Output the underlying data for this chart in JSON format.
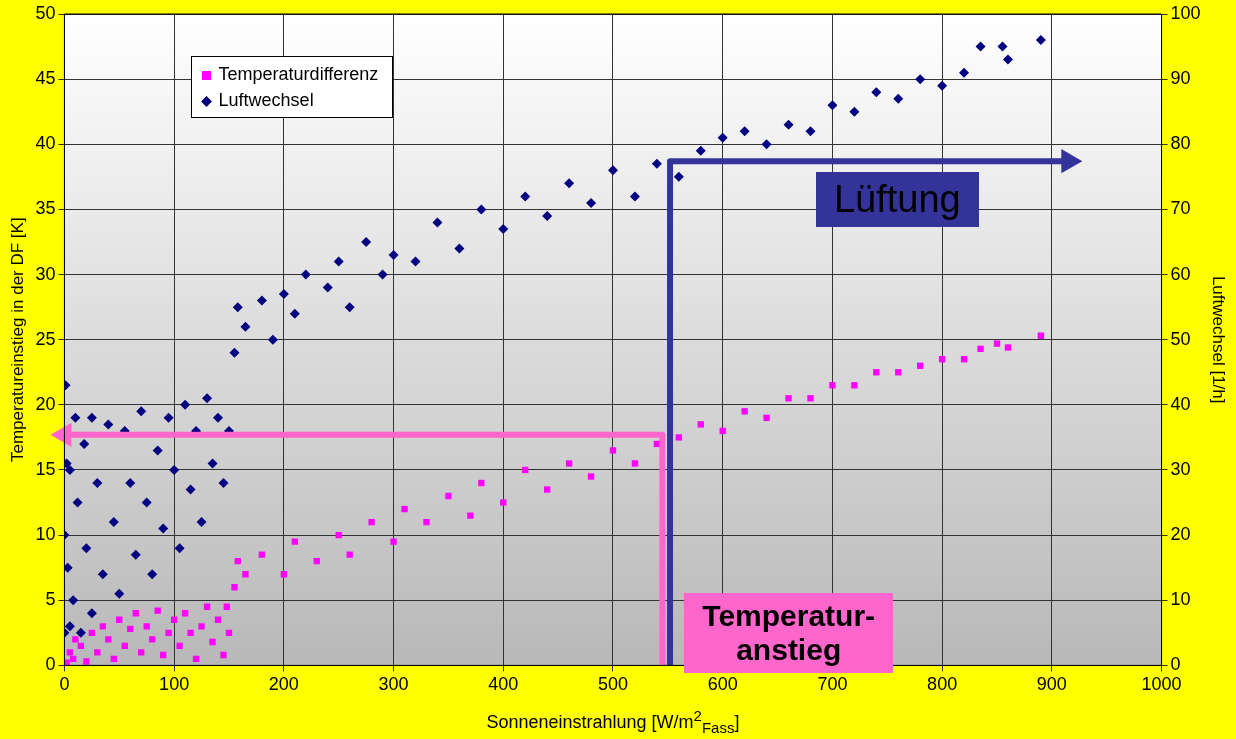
{
  "chart_data": {
    "type": "scatter",
    "xlabel": "Sonneneinstrahlung [W/m$^{2}$$_{Fass}$]",
    "ylabel": "Temperatureinstieg in der DF [K]",
    "y2label": "Luftwechsel [1/h]",
    "xlim": [
      0,
      1000
    ],
    "xticks": [
      0,
      100,
      200,
      300,
      400,
      500,
      600,
      700,
      800,
      900,
      1000
    ],
    "ylim": [
      0,
      50
    ],
    "yticks": [
      0,
      5,
      10,
      15,
      20,
      25,
      30,
      35,
      40,
      45,
      50
    ],
    "y2lim": [
      0,
      100
    ],
    "y2ticks": [
      0,
      10,
      20,
      30,
      40,
      50,
      60,
      70,
      80,
      90,
      100
    ],
    "grid": true,
    "legend": "top left",
    "annotations": [
      "Lüftung",
      "Temperatur-\nanstieg"
    ],
    "series": [
      {
        "name": "Temperaturdifferenz",
        "color": "#ff00ff",
        "marker": "square",
        "x": [
          2,
          5,
          8,
          10,
          15,
          20,
          25,
          30,
          35,
          40,
          45,
          50,
          55,
          60,
          65,
          70,
          75,
          80,
          85,
          90,
          95,
          100,
          105,
          110,
          115,
          120,
          125,
          130,
          135,
          140,
          145,
          148,
          150,
          155,
          158,
          165,
          180,
          200,
          210,
          230,
          250,
          260,
          280,
          300,
          310,
          330,
          350,
          370,
          380,
          400,
          420,
          440,
          460,
          480,
          500,
          520,
          540,
          560,
          580,
          600,
          620,
          640,
          660,
          680,
          700,
          720,
          740,
          760,
          780,
          800,
          820,
          835,
          850,
          860,
          890
        ],
        "values": [
          0.2,
          1,
          0.5,
          2,
          1.5,
          0.3,
          2.5,
          1,
          3,
          2,
          0.5,
          3.5,
          1.5,
          2.8,
          4,
          1,
          3,
          2,
          4.2,
          0.8,
          2.5,
          3.5,
          1.5,
          4,
          2.5,
          0.5,
          3,
          4.5,
          1.8,
          3.5,
          0.8,
          4.5,
          2.5,
          6,
          8,
          7,
          8.5,
          7,
          9.5,
          8,
          10,
          8.5,
          11,
          9.5,
          12,
          11,
          13,
          11.5,
          14,
          12.5,
          15,
          13.5,
          15.5,
          14.5,
          16.5,
          15.5,
          17,
          17.5,
          18.5,
          18,
          19.5,
          19,
          20.5,
          20.5,
          21.5,
          21.5,
          22.5,
          22.5,
          23,
          23.5,
          23.5,
          24.3,
          24.7,
          24.4,
          25.3
        ]
      },
      {
        "name": "Luftwechsel",
        "color": "#000080",
        "marker": "diamond",
        "axis": "y2",
        "x": [
          0,
          0,
          2,
          1,
          3,
          5,
          5,
          8,
          10,
          12,
          15,
          18,
          20,
          25,
          25,
          30,
          35,
          40,
          45,
          50,
          55,
          60,
          65,
          70,
          75,
          80,
          85,
          90,
          95,
          100,
          105,
          110,
          115,
          120,
          125,
          130,
          135,
          140,
          145,
          150,
          155,
          158,
          165,
          180,
          190,
          200,
          210,
          220,
          240,
          250,
          260,
          275,
          290,
          300,
          320,
          340,
          360,
          380,
          400,
          420,
          440,
          460,
          480,
          500,
          520,
          540,
          560,
          580,
          600,
          620,
          640,
          660,
          680,
          700,
          720,
          740,
          760,
          780,
          800,
          820,
          835,
          855,
          860,
          890
        ],
        "values": [
          5,
          20,
          31,
          43,
          15,
          6,
          30,
          10,
          38,
          25,
          5,
          34,
          18,
          38,
          8,
          28,
          14,
          37,
          22,
          11,
          36,
          28,
          17,
          39,
          25,
          14,
          33,
          21,
          38,
          30,
          18,
          40,
          27,
          36,
          22,
          41,
          31,
          38,
          28,
          36,
          48,
          55,
          52,
          56,
          50,
          57,
          54,
          60,
          58,
          62,
          55,
          65,
          60,
          63,
          62,
          68,
          64,
          70,
          67,
          72,
          69,
          74,
          71,
          76,
          72,
          77,
          75,
          79,
          81,
          82,
          80,
          83,
          82,
          86,
          85,
          88,
          87,
          90,
          89,
          91,
          95,
          95,
          93,
          96
        ]
      },
      {
        "type": "line",
        "color": "#ff66cc",
        "marker": "none",
        "x": [
          545,
          545,
          0
        ],
        "values": [
          0,
          17.7,
          17.7
        ]
      },
      {
        "type": "line",
        "color": "#333399",
        "marker": "none",
        "axis": "y2",
        "x": [
          552,
          552,
          915
        ],
        "values": [
          0,
          77.4,
          77.4
        ]
      }
    ]
  }
}
